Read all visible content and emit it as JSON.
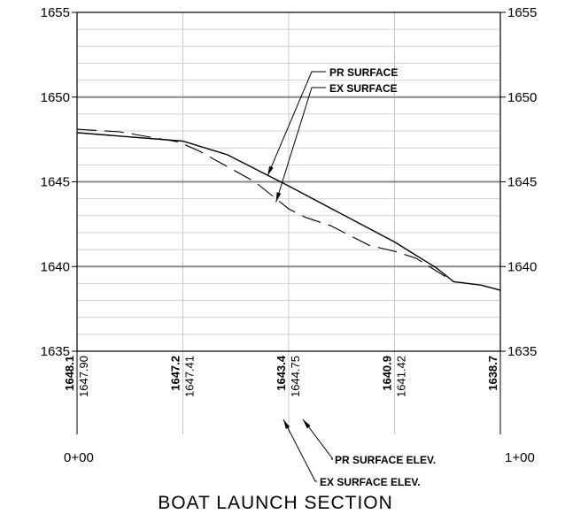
{
  "chart_data": {
    "type": "line",
    "title": "BOAT LAUNCH SECTION",
    "y_axis": {
      "min": 1635,
      "max": 1655,
      "major_ticks": [
        1635,
        1640,
        1645,
        1650,
        1655
      ],
      "minor_step": 1
    },
    "x_axis": {
      "min": 0,
      "max": 100,
      "start_label": "0+00",
      "end_label": "1+00"
    },
    "series": [
      {
        "name": "PR SURFACE",
        "style": "solid",
        "points": [
          [
            0,
            1647.9
          ],
          [
            25,
            1647.4
          ],
          [
            35.5,
            1646.6
          ],
          [
            50,
            1644.75
          ],
          [
            75,
            1641.45
          ],
          [
            85,
            1639.9
          ],
          [
            89,
            1639.1
          ],
          [
            95.5,
            1638.9
          ],
          [
            100,
            1638.6
          ]
        ]
      },
      {
        "name": "EX SURFACE",
        "style": "dashed",
        "points": [
          [
            0,
            1648.1
          ],
          [
            10,
            1647.95
          ],
          [
            24,
            1647.35
          ],
          [
            29,
            1646.8
          ],
          [
            34,
            1646.1
          ],
          [
            42,
            1645
          ],
          [
            50,
            1643.4
          ],
          [
            54,
            1642.9
          ],
          [
            60,
            1642.4
          ],
          [
            69,
            1641.25
          ],
          [
            75,
            1640.9
          ],
          [
            80,
            1640.5
          ],
          [
            89,
            1639.1
          ]
        ]
      }
    ],
    "annotations": {
      "pr_surface": "PR SURFACE",
      "ex_surface": "EX SURFACE",
      "pr_surface_elev": "PR SURFACE ELEV.",
      "ex_surface_elev": "EX SURFACE ELEV."
    },
    "station_elevations": [
      {
        "station": 0,
        "ex": "1648.1",
        "pr": "1647.90"
      },
      {
        "station": 25,
        "ex": "1647.2",
        "pr": "1647.41"
      },
      {
        "station": 50,
        "ex": "1643.4",
        "pr": "1644.75"
      },
      {
        "station": 75,
        "ex": "1640.9",
        "pr": "1641.42"
      },
      {
        "station": 100,
        "ex": "1638.7",
        "pr": ""
      }
    ]
  }
}
